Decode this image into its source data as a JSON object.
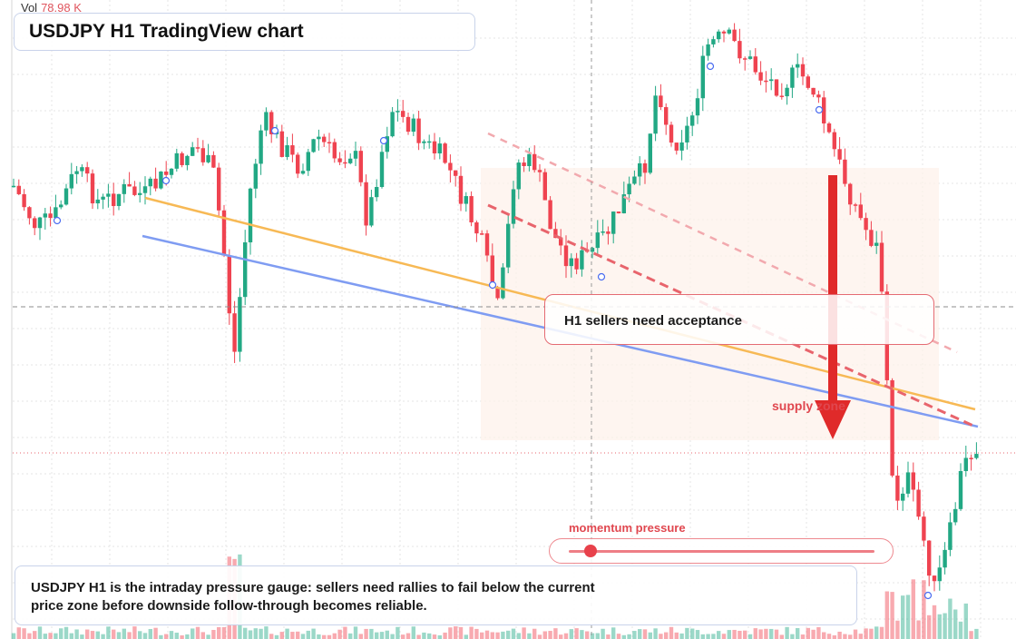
{
  "volume": {
    "label": "Vol",
    "value": "78.98 K"
  },
  "title": "USDJPY H1 TradingView chart",
  "callout": "H1 sellers need acceptance",
  "zone_label": "supply zone",
  "momentum": {
    "label": "momentum pressure",
    "level": 0.07
  },
  "summary": "USDJPY H1 is the intraday pressure gauge: sellers need rallies to fail below the current price zone before downside follow-through becomes reliable.",
  "colors": {
    "up": "#22a884",
    "down": "#ef4350",
    "accent": "#e0474f",
    "trend_orange": "#f7b955",
    "trend_blue": "#7f9cf2"
  },
  "chart_data": {
    "type": "candlestick",
    "symbol": "USDJPY",
    "timeframe": "H1",
    "annotations": [
      "supply zone",
      "H1 sellers need acceptance"
    ],
    "trendlines": [
      "orange rising support",
      "blue lower support",
      "red dashed resistance",
      "pink dashed resistance"
    ]
  }
}
